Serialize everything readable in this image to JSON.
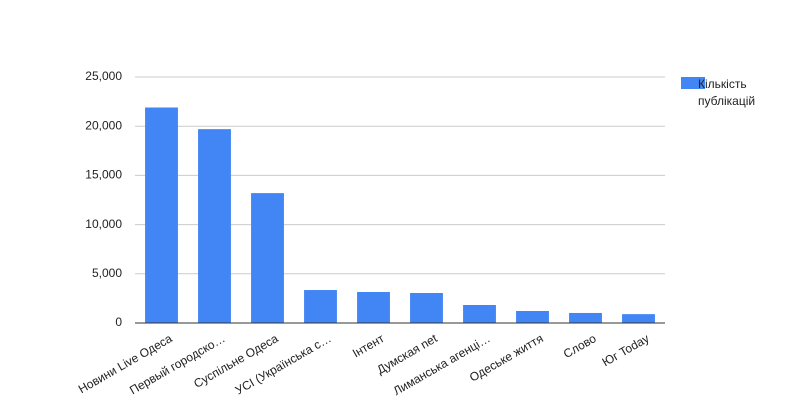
{
  "chart_data": {
    "type": "bar",
    "categories": [
      "Новини Live Одеса",
      "Первый городско…",
      "Суспільне Одеса",
      "УСІ (Українська с…",
      "Інтент",
      "Думская net",
      "Лиманська агенці…",
      "Одеське життя",
      "Слово",
      "Юг Today"
    ],
    "series": [
      {
        "name": "Кількість публікацій",
        "color": "#4285f4",
        "values": [
          21900,
          19700,
          13200,
          3350,
          3150,
          3050,
          1830,
          1220,
          1020,
          900
        ]
      }
    ],
    "ylim": [
      0,
      25000
    ],
    "yticks": [
      0,
      {
        "value": 5000,
        "label": "5,000"
      },
      {
        "value": 10000,
        "label": "10,000"
      },
      {
        "value": 15000,
        "label": "15,000"
      },
      {
        "value": 20000,
        "label": "20,000"
      },
      {
        "value": 25000,
        "label": "25,000"
      }
    ],
    "grid": true,
    "legend": "right"
  }
}
